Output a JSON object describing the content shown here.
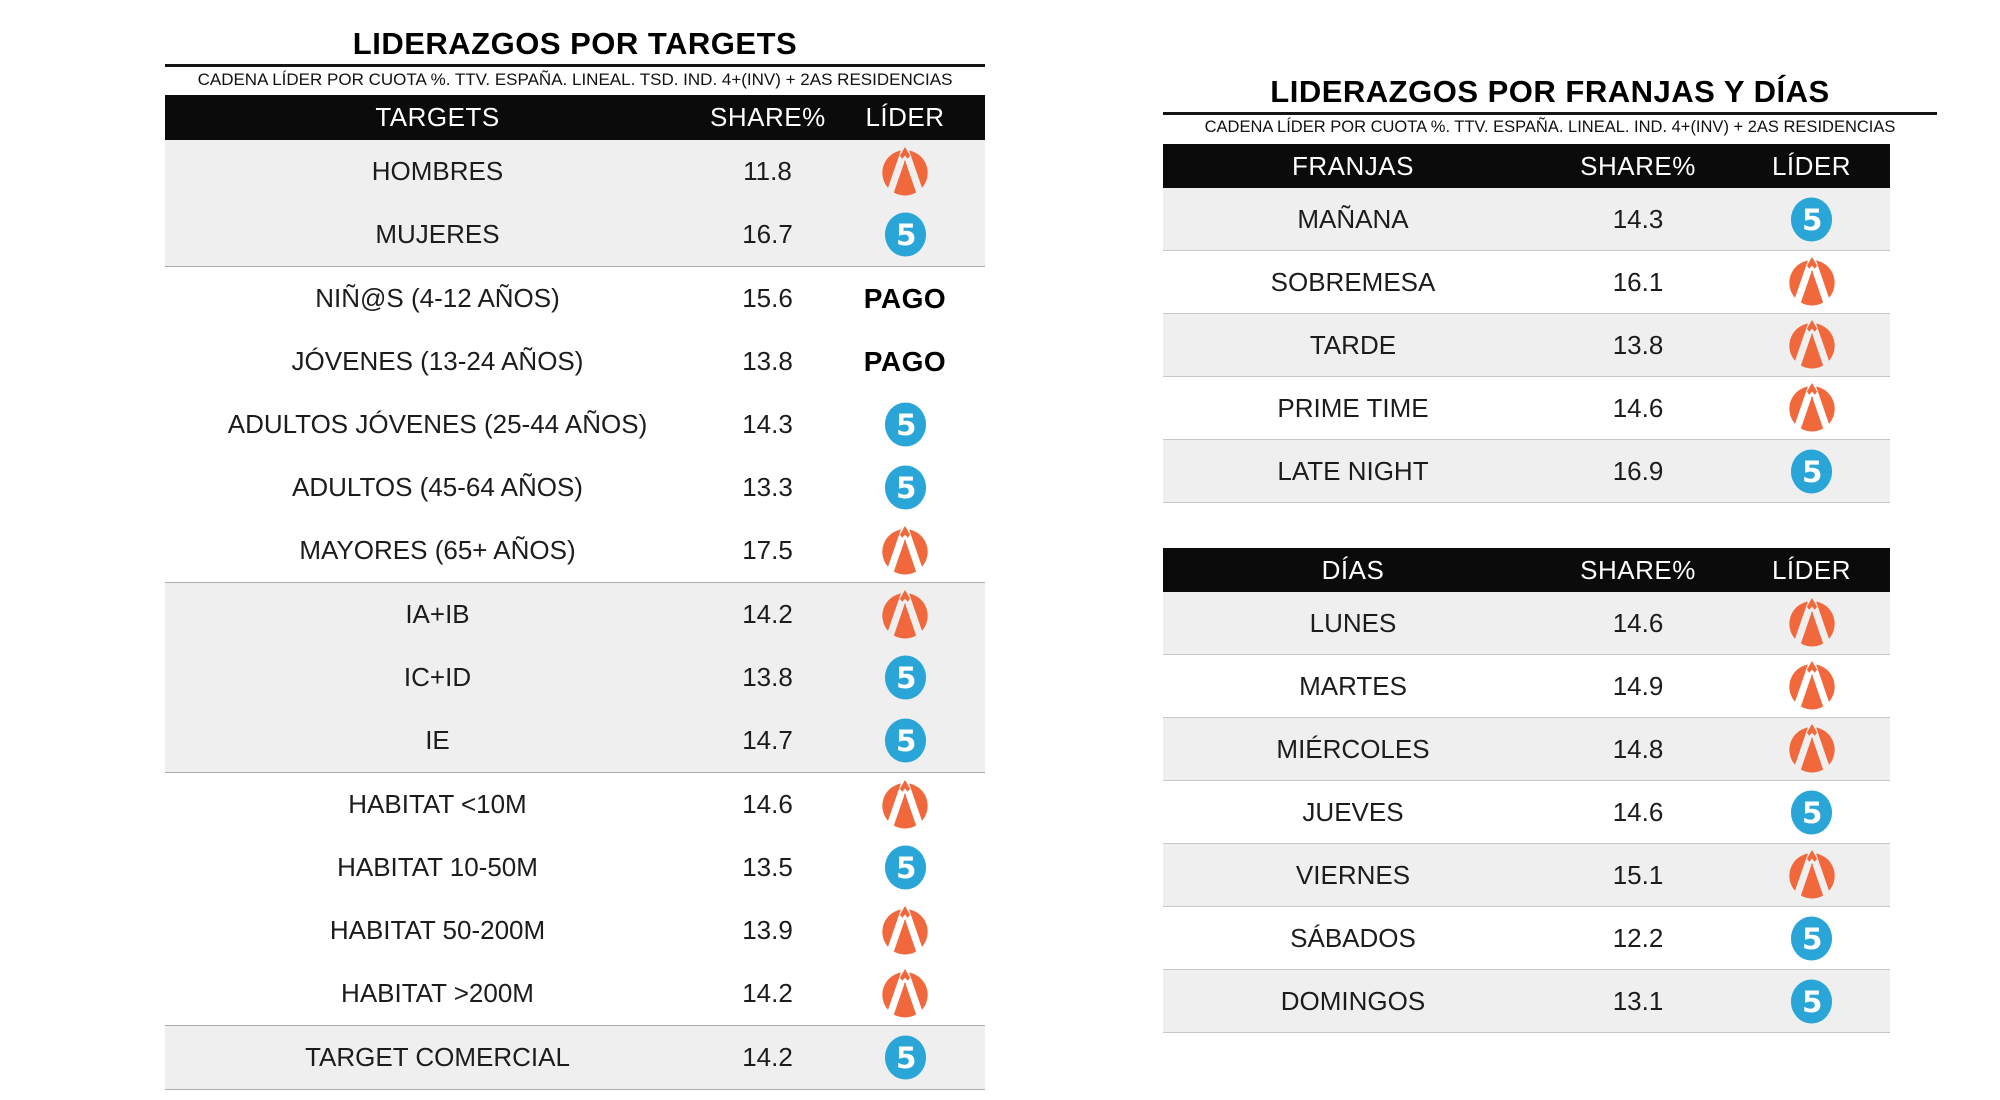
{
  "chart_data": [
    {
      "type": "table",
      "id": "targets",
      "title": "LIDERAZGOS POR TARGETS",
      "subtitle": "CADENA LÍDER POR CUOTA %. TTV. ESPAÑA. LINEAL. TSD. IND. 4+(INV) + 2AS RESIDENCIAS",
      "columns": [
        "TARGETS",
        "SHARE%",
        "LÍDER"
      ],
      "stripe": "groups",
      "rows": [
        {
          "label": "HOMBRES",
          "share": "11.8",
          "leader": "Antena 3",
          "band": "gray",
          "group_end": false
        },
        {
          "label": "MUJERES",
          "share": "16.7",
          "leader": "Telecinco",
          "band": "gray",
          "group_end": true
        },
        {
          "label": "NIÑ@S (4-12 AÑOS)",
          "share": "15.6",
          "leader": "PAGO",
          "band": "white",
          "group_end": false
        },
        {
          "label": "JÓVENES (13-24 AÑOS)",
          "share": "13.8",
          "leader": "PAGO",
          "band": "white",
          "group_end": false
        },
        {
          "label": "ADULTOS JÓVENES (25-44 AÑOS)",
          "share": "14.3",
          "leader": "Telecinco",
          "band": "white",
          "group_end": false
        },
        {
          "label": "ADULTOS (45-64 AÑOS)",
          "share": "13.3",
          "leader": "Telecinco",
          "band": "white",
          "group_end": false
        },
        {
          "label": "MAYORES (65+ AÑOS)",
          "share": "17.5",
          "leader": "Antena 3",
          "band": "white",
          "group_end": true
        },
        {
          "label": "IA+IB",
          "share": "14.2",
          "leader": "Antena 3",
          "band": "gray",
          "group_end": false
        },
        {
          "label": "IC+ID",
          "share": "13.8",
          "leader": "Telecinco",
          "band": "gray",
          "group_end": false
        },
        {
          "label": "IE",
          "share": "14.7",
          "leader": "Telecinco",
          "band": "gray",
          "group_end": true
        },
        {
          "label": "HABITAT <10M",
          "share": "14.6",
          "leader": "Antena 3",
          "band": "white",
          "group_end": false
        },
        {
          "label": "HABITAT 10-50M",
          "share": "13.5",
          "leader": "Telecinco",
          "band": "white",
          "group_end": false
        },
        {
          "label": "HABITAT 50-200M",
          "share": "13.9",
          "leader": "Antena 3",
          "band": "white",
          "group_end": false
        },
        {
          "label": "HABITAT >200M",
          "share": "14.2",
          "leader": "Antena 3",
          "band": "white",
          "group_end": true
        },
        {
          "label": "TARGET COMERCIAL",
          "share": "14.2",
          "leader": "Telecinco",
          "band": "gray",
          "group_end": true
        }
      ]
    },
    {
      "type": "table",
      "id": "franjas",
      "title": "LIDERAZGOS POR FRANJAS Y DÍAS",
      "subtitle": "CADENA LÍDER POR CUOTA %. TTV. ESPAÑA. LINEAL. IND. 4+(INV) + 2AS RESIDENCIAS",
      "columns": [
        "FRANJAS",
        "SHARE%",
        "LÍDER"
      ],
      "stripe": "alternate",
      "rows": [
        {
          "label": "MAÑANA",
          "share": "14.3",
          "leader": "Telecinco"
        },
        {
          "label": "SOBREMESA",
          "share": "16.1",
          "leader": "Antena 3"
        },
        {
          "label": "TARDE",
          "share": "13.8",
          "leader": "Antena 3"
        },
        {
          "label": "PRIME TIME",
          "share": "14.6",
          "leader": "Antena 3"
        },
        {
          "label": "LATE NIGHT",
          "share": "16.9",
          "leader": "Telecinco"
        }
      ]
    },
    {
      "type": "table",
      "id": "dias",
      "columns": [
        "DÍAS",
        "SHARE%",
        "LÍDER"
      ],
      "stripe": "alternate",
      "rows": [
        {
          "label": "LUNES",
          "share": "14.6",
          "leader": "Antena 3"
        },
        {
          "label": "MARTES",
          "share": "14.9",
          "leader": "Antena 3"
        },
        {
          "label": "MIÉRCOLES",
          "share": "14.8",
          "leader": "Antena 3"
        },
        {
          "label": "JUEVES",
          "share": "14.6",
          "leader": "Telecinco"
        },
        {
          "label": "VIERNES",
          "share": "15.1",
          "leader": "Antena 3"
        },
        {
          "label": "SÁBADOS",
          "share": "12.2",
          "leader": "Telecinco"
        },
        {
          "label": "DOMINGOS",
          "share": "13.1",
          "leader": "Telecinco"
        }
      ]
    }
  ],
  "logos": {
    "antena3_name": "Antena 3",
    "antena3_color": "#F1683C",
    "telecinco_name": "Telecinco",
    "telecinco_color": "#2AA5D8",
    "telecinco_glyph": "5",
    "pago_label": "PAGO"
  },
  "colors": {
    "header_bg": "#0B0B0B",
    "header_text": "#FFFFFF",
    "row_stripe": "#EFEFEF",
    "group_separator": "#ABABAB",
    "row_separator": "#C8C8C8",
    "text": "#1C1C1C"
  }
}
